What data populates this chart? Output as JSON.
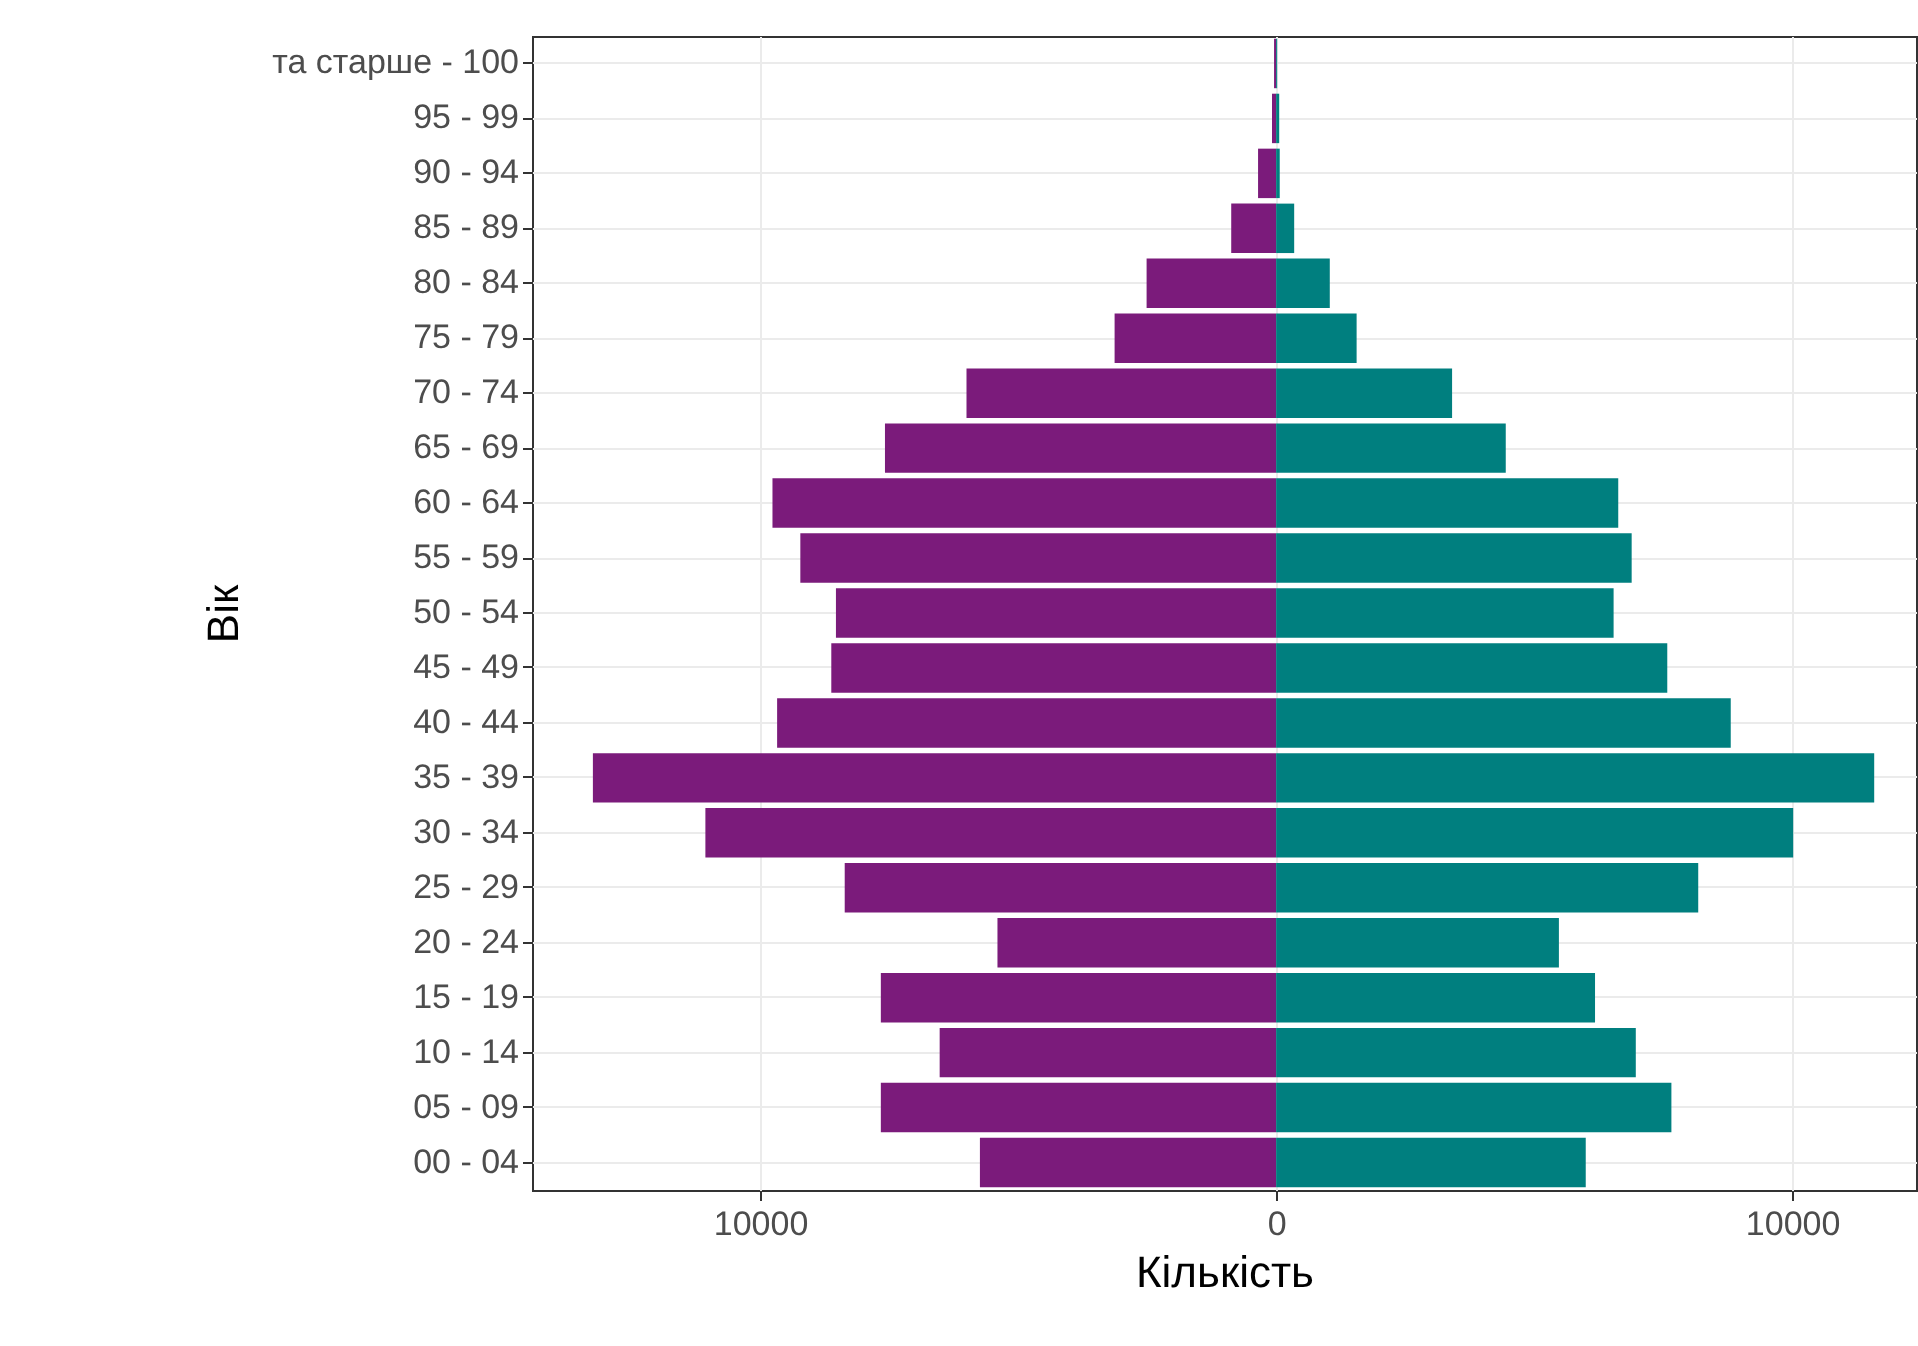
{
  "chart_data": {
    "type": "bar",
    "orientation": "horizontal",
    "stacked": true,
    "xlabel": "Кількість",
    "ylabel": "Вік",
    "categories": [
      "та старше - 100",
      "95 - 99",
      "90 - 94",
      "85 - 89",
      "80 - 84",
      "75 - 79",
      "70 - 74",
      "65 - 69",
      "60 - 64",
      "55 - 59",
      "50 - 54",
      "45 - 49",
      "40 - 44",
      "35 - 39",
      "30 - 34",
      "25 - 29",
      "20 - 24",
      "15 - 19",
      "10 - 14",
      "05 - 09",
      "00 - 04"
    ],
    "series": [
      {
        "color": "#7b1b7b",
        "values": [
          -40,
          -80,
          -350,
          -870,
          -2510,
          -3130,
          -6000,
          -7580,
          -9760,
          -9220,
          -8530,
          -8620,
          -9670,
          -13240,
          -11060,
          -8360,
          -5400,
          -7660,
          -6520,
          -7660,
          -5740
        ]
      },
      {
        "color": "#007f7f",
        "values": [
          20,
          60,
          70,
          350,
          1040,
          1560,
          3410,
          4450,
          6630,
          6890,
          6540,
          7580,
          8810,
          11590,
          10020,
          8180,
          5480,
          6180,
          6970,
          7660,
          6000
        ]
      }
    ],
    "xlim": [
      -14420,
      12400
    ],
    "xticks": [
      {
        "value": -10000,
        "label": "10000"
      },
      0,
      10000
    ],
    "grid": true
  }
}
